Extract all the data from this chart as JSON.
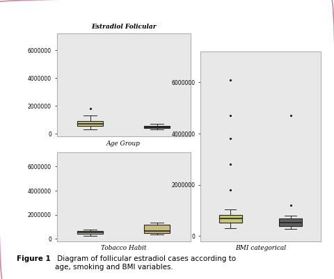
{
  "title": "Estradiol Folicular",
  "fig_caption_bold": "Figure 1",
  "fig_caption": " Diagram of follicular estradiol cases according to\nage, smoking and BMI variables.",
  "bg_color": "#ffffff",
  "outer_border_color": "#cc8899",
  "plot_bg": "#e8e8e8",
  "age_group": {
    "xlabel": "Age Group",
    "ylim": [
      -200000,
      7200000
    ],
    "yticks": [
      0,
      2000000,
      4000000,
      6000000
    ],
    "box1": {
      "q1": 550000,
      "median": 700000,
      "q3": 900000,
      "whislo": 300000,
      "whishi": 1300000,
      "fliers_high": [
        1800000
      ],
      "fliers_low": []
    },
    "box2": {
      "q1": 420000,
      "median": 500000,
      "q3": 580000,
      "whislo": 320000,
      "whishi": 720000,
      "fliers_high": [],
      "fliers_low": []
    },
    "box1_color": "#c8c870",
    "box2_color": "#303030",
    "positions": [
      1,
      2
    ]
  },
  "tobacco_habit": {
    "xlabel": "Tobacco Habit",
    "ylim": [
      -200000,
      7200000
    ],
    "yticks": [
      0,
      2000000,
      4000000,
      6000000
    ],
    "box1": {
      "q1": 420000,
      "median": 530000,
      "q3": 640000,
      "whislo": 280000,
      "whishi": 800000,
      "fliers_high": [],
      "fliers_low": []
    },
    "box2": {
      "q1": 480000,
      "median": 650000,
      "q3": 1150000,
      "whislo": 350000,
      "whishi": 1350000,
      "fliers_high": [],
      "fliers_low": []
    },
    "box1_color": "#c8c870",
    "box2_color": "#c8bb80",
    "positions": [
      1,
      2
    ]
  },
  "bmi_categorical": {
    "xlabel": "BMI categorical",
    "ylim": [
      -200000,
      7200000
    ],
    "yticks": [
      0,
      2000000,
      4000000,
      6000000
    ],
    "box1": {
      "q1": 520000,
      "median": 680000,
      "q3": 820000,
      "whislo": 300000,
      "whishi": 1050000,
      "fliers_high": [
        1800000,
        2800000,
        3800000,
        4700000,
        6100000
      ],
      "fliers_low": []
    },
    "box2": {
      "q1": 400000,
      "median": 540000,
      "q3": 680000,
      "whislo": 280000,
      "whishi": 800000,
      "fliers_high": [
        1200000,
        4700000
      ],
      "fliers_low": []
    },
    "box1_color": "#c8c870",
    "box2_color": "#606060",
    "positions": [
      1,
      2
    ]
  }
}
